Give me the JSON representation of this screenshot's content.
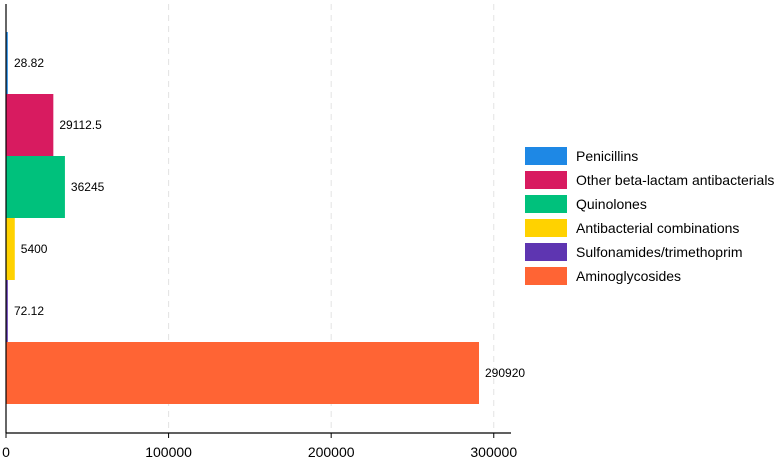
{
  "chart_data": {
    "type": "bar",
    "orientation": "horizontal",
    "title": "",
    "xlabel": "",
    "ylabel": "",
    "xlim": [
      0,
      315000
    ],
    "xticks": [
      0,
      100000,
      200000,
      300000
    ],
    "xtick_labels": [
      "0",
      "100000",
      "200000",
      "300000"
    ],
    "grid": "vertical dashed",
    "legend_position": "right",
    "series": [
      {
        "name": "Penicillins",
        "value": 28.82,
        "label": "28.82",
        "color": "#1E88E5"
      },
      {
        "name": "Other beta-lactam antibacterials",
        "value": 29112.5,
        "label": "29112.5",
        "color": "#D81B60"
      },
      {
        "name": "Quinolones",
        "value": 36245,
        "label": "36245",
        "color": "#00C17C"
      },
      {
        "name": "Antibacterial combinations",
        "value": 5400,
        "label": "5400",
        "color": "#FFD200"
      },
      {
        "name": "Sulfonamides/trimethoprim",
        "value": 72.12,
        "label": "72.12",
        "color": "#5E35B1"
      },
      {
        "name": "Aminoglycosides",
        "value": 290920,
        "label": "290920",
        "color": "#FF6434"
      }
    ]
  }
}
